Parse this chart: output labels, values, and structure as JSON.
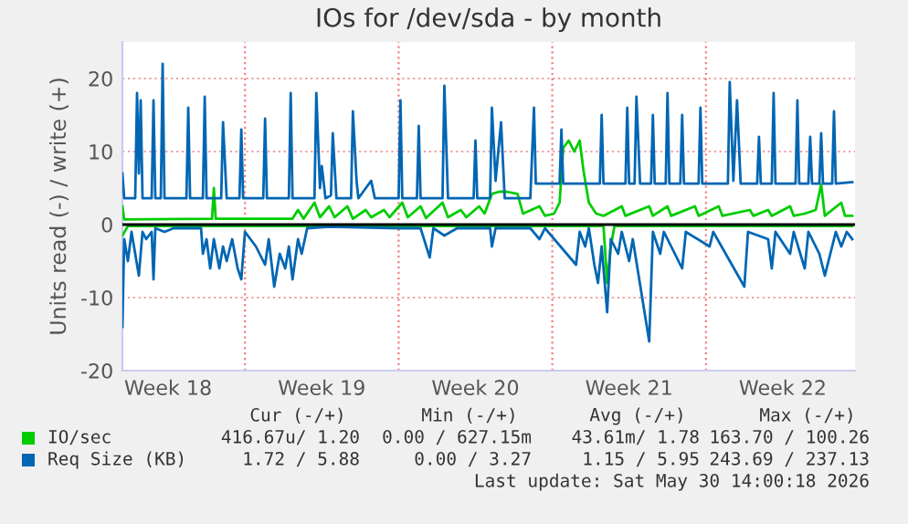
{
  "chart_data": {
    "type": "line",
    "title": "IOs for /dev/sda - by month",
    "ylabel": "Units read (-) / write (+)",
    "xlim": [
      "2026-04-28T10:00",
      "2026-05-31T19:00"
    ],
    "ylim": [
      -20,
      25
    ],
    "xticks": [
      {
        "value": "2026-04-30T12:00",
        "label": "Week 18"
      },
      {
        "value": "2026-05-07T12:00",
        "label": "Week 19"
      },
      {
        "value": "2026-05-14T12:00",
        "label": "Week 20"
      },
      {
        "value": "2026-05-21T12:00",
        "label": "Week 21"
      },
      {
        "value": "2026-05-28T12:00",
        "label": "Week 22"
      }
    ],
    "yticks": [
      -20,
      -10,
      0,
      10,
      20
    ],
    "grid": "y",
    "legend": "bottom",
    "ref_lines": [
      {
        "axis": "x",
        "value": "2026-05-04",
        "color": "#f08080",
        "line_style": "dotted"
      },
      {
        "axis": "x",
        "value": "2026-05-11",
        "color": "#f08080",
        "line_style": "dotted"
      },
      {
        "axis": "x",
        "value": "2026-05-18",
        "color": "#f08080",
        "line_style": "dotted"
      },
      {
        "axis": "x",
        "value": "2026-05-25",
        "color": "#f08080",
        "line_style": "dotted"
      },
      {
        "axis": "y",
        "value": 0,
        "color": "#000000",
        "line_style": "solid"
      }
    ],
    "series": [
      {
        "color": "#00cc00",
        "x": [
          "2026-04-28T10:00",
          "2026-04-28T16:00",
          "2026-05-20T08:00",
          "2026-05-20T10:00",
          "2026-05-20T12:00",
          "2026-05-20T16:00",
          "2026-05-20T20:00",
          "2026-05-31T16:00"
        ],
        "values": [
          -1.5,
          -0.2,
          -0.2,
          -4,
          -8,
          -3,
          -0.2,
          -0.2
        ]
      },
      {
        "name": "IO/sec",
        "color": "#00cc00",
        "x": [
          "2026-04-28T10:00",
          "2026-04-28T12:00",
          "2026-05-02T12:00",
          "2026-05-02T14:00",
          "2026-05-02T16:00",
          "2026-05-06T04:00",
          "2026-05-06T10:00",
          "2026-05-06T16:00",
          "2026-05-07T04:00",
          "2026-05-07T10:00",
          "2026-05-07T20:00",
          "2026-05-08T02:00",
          "2026-05-08T16:00",
          "2026-05-08T22:00",
          "2026-05-09T12:00",
          "2026-05-09T18:00",
          "2026-05-10T08:00",
          "2026-05-10T14:00",
          "2026-05-11T04:00",
          "2026-05-11T10:00",
          "2026-05-12T00:00",
          "2026-05-12T06:00",
          "2026-05-13T00:00",
          "2026-05-13T06:00",
          "2026-05-13T20:00",
          "2026-05-14T02:00",
          "2026-05-14T16:00",
          "2026-05-14T22:00",
          "2026-05-15T06:00",
          "2026-05-15T14:00",
          "2026-05-15T22:00",
          "2026-05-16T10:00",
          "2026-05-16T16:00",
          "2026-05-17T10:00",
          "2026-05-17T16:00",
          "2026-05-18T02:00",
          "2026-05-18T08:00",
          "2026-05-18T12:00",
          "2026-05-18T18:00",
          "2026-05-19T00:00",
          "2026-05-19T06:00",
          "2026-05-19T10:00",
          "2026-05-19T16:00",
          "2026-05-20T00:00",
          "2026-05-20T08:00",
          "2026-05-21T04:00",
          "2026-05-21T08:00",
          "2026-05-22T10:00",
          "2026-05-22T14:00",
          "2026-05-23T06:00",
          "2026-05-23T10:00",
          "2026-05-24T12:00",
          "2026-05-24T16:00",
          "2026-05-25T14:00",
          "2026-05-25T18:00",
          "2026-05-27T00:00",
          "2026-05-27T04:00",
          "2026-05-27T20:00",
          "2026-05-28T00:00",
          "2026-05-28T20:00",
          "2026-05-29T00:00",
          "2026-05-29T12:00",
          "2026-05-30T00:00",
          "2026-05-30T06:00",
          "2026-05-30T10:00",
          "2026-05-31T04:00",
          "2026-05-31T08:00",
          "2026-05-31T16:00"
        ],
        "values": [
          2.5,
          0.7,
          0.8,
          5,
          0.8,
          0.8,
          2,
          0.8,
          3,
          1,
          2.5,
          1,
          2.5,
          0.8,
          2,
          1,
          2,
          1,
          3,
          1,
          2.5,
          0.9,
          3,
          1,
          2,
          1,
          2.5,
          1.5,
          4.2,
          4.5,
          4.5,
          4.2,
          1.5,
          2.5,
          1.2,
          1.5,
          3,
          10.5,
          11.5,
          10,
          11.5,
          7.5,
          3,
          1.5,
          1.2,
          2.5,
          1.2,
          2.5,
          1.2,
          2.5,
          1.2,
          2.5,
          1.2,
          2.5,
          1.2,
          2,
          1.2,
          2,
          1.2,
          2.5,
          1.2,
          1.5,
          2,
          5.5,
          1.2,
          3,
          1.2,
          1.2
        ]
      },
      {
        "color": "#0066b3",
        "x": [
          "2026-04-28T10:00",
          "2026-04-28T12:00",
          "2026-04-28T16:00",
          "2026-04-28T20:00",
          "2026-04-29T00:00",
          "2026-04-29T04:00",
          "2026-04-29T08:00",
          "2026-04-29T12:00",
          "2026-04-29T18:00",
          "2026-04-29T20:00",
          "2026-04-29T22:00",
          "2026-04-30T08:00",
          "2026-04-30T18:00",
          "2026-05-02T00:00",
          "2026-05-02T02:00",
          "2026-05-02T06:00",
          "2026-05-02T10:00",
          "2026-05-02T14:00",
          "2026-05-02T20:00",
          "2026-05-03T00:00",
          "2026-05-03T04:00",
          "2026-05-03T10:00",
          "2026-05-03T16:00",
          "2026-05-03T20:00",
          "2026-05-04T00:00",
          "2026-05-04T12:00",
          "2026-05-04T22:00",
          "2026-05-05T02:00",
          "2026-05-05T08:00",
          "2026-05-05T14:00",
          "2026-05-05T20:00",
          "2026-05-06T00:00",
          "2026-05-06T04:00",
          "2026-05-06T10:00",
          "2026-05-06T14:00",
          "2026-05-06T20:00",
          "2026-05-07T20:00",
          "2026-05-11T00:00",
          "2026-05-12T00:00",
          "2026-05-12T10:00",
          "2026-05-12T14:00",
          "2026-05-13T02:00",
          "2026-05-13T16:00",
          "2026-05-15T04:00",
          "2026-05-15T06:00",
          "2026-05-15T10:00",
          "2026-05-17T00:00",
          "2026-05-17T10:00",
          "2026-05-17T16:00",
          "2026-05-19T02:00",
          "2026-05-19T06:00",
          "2026-05-19T12:00",
          "2026-05-19T16:00",
          "2026-05-19T22:00",
          "2026-05-20T02:00",
          "2026-05-20T06:00",
          "2026-05-20T12:00",
          "2026-05-20T16:00",
          "2026-05-21T00:00",
          "2026-05-21T04:00",
          "2026-05-21T12:00",
          "2026-05-21T16:00",
          "2026-05-22T10:00",
          "2026-05-22T14:00",
          "2026-05-22T22:00",
          "2026-05-23T02:00",
          "2026-05-23T22:00",
          "2026-05-24T02:00",
          "2026-05-25T04:00",
          "2026-05-25T08:00",
          "2026-05-26T18:00",
          "2026-05-26T22:00",
          "2026-05-27T20:00",
          "2026-05-28T00:00",
          "2026-05-28T04:00",
          "2026-05-28T20:00",
          "2026-05-29T00:00",
          "2026-05-29T12:00",
          "2026-05-29T16:00",
          "2026-05-30T04:00",
          "2026-05-30T10:00",
          "2026-05-30T22:00",
          "2026-05-31T04:00",
          "2026-05-31T10:00",
          "2026-05-31T16:00"
        ],
        "values": [
          -14,
          -2,
          -5,
          -1,
          -4,
          -7,
          -1,
          -2,
          -1,
          -7.5,
          -0.5,
          -1,
          -0.5,
          -0.5,
          -4,
          -2,
          -6,
          -2,
          -6,
          -3,
          -5,
          -2,
          -6,
          -7.5,
          -1,
          -3,
          -5.5,
          -2,
          -8.5,
          -4,
          -6,
          -3,
          -7.5,
          -2,
          -4,
          -0.5,
          -0.3,
          -0.5,
          -0.5,
          -4.5,
          -0.5,
          -1.5,
          -0.5,
          -0.5,
          -3,
          -0.5,
          -0.5,
          -2,
          -0.5,
          -5.5,
          -1,
          -3,
          -0.5,
          -5.5,
          -8,
          -3,
          -12,
          -2,
          -4,
          -1,
          -5,
          -2,
          -16,
          -1,
          -4,
          -1,
          -6,
          -1,
          -3,
          -1,
          -8.5,
          -1,
          -2,
          -6,
          -1,
          -4,
          -1,
          -6,
          -1,
          -4,
          -7,
          -1,
          -3,
          -1,
          -2
        ]
      },
      {
        "name": "Req Size (KB)",
        "color": "#0066b3",
        "x": [
          "2026-04-28T10:00",
          "2026-04-28T12:00",
          "2026-04-29T00:00",
          "2026-04-29T02:00",
          "2026-04-29T04:00",
          "2026-04-29T06:00",
          "2026-04-29T08:00",
          "2026-04-29T18:00",
          "2026-04-29T20:00",
          "2026-04-29T22:00",
          "2026-04-30T04:00",
          "2026-04-30T06:00",
          "2026-04-30T08:00",
          "2026-05-01T08:00",
          "2026-05-01T10:00",
          "2026-05-01T12:00",
          "2026-05-02T02:00",
          "2026-05-02T04:00",
          "2026-05-02T06:00",
          "2026-05-02T22:00",
          "2026-05-03T00:00",
          "2026-05-03T04:00",
          "2026-05-03T18:00",
          "2026-05-03T20:00",
          "2026-05-03T22:00",
          "2026-05-04T20:00",
          "2026-05-04T22:00",
          "2026-05-05T00:00",
          "2026-05-06T00:00",
          "2026-05-06T02:00",
          "2026-05-06T04:00",
          "2026-05-07T04:00",
          "2026-05-07T06:00",
          "2026-05-07T10:00",
          "2026-05-07T12:00",
          "2026-05-07T16:00",
          "2026-05-07T22:00",
          "2026-05-08T00:00",
          "2026-05-08T04:00",
          "2026-05-08T20:00",
          "2026-05-08T22:00",
          "2026-05-09T02:00",
          "2026-05-09T04:00",
          "2026-05-09T18:00",
          "2026-05-09T22:00",
          "2026-05-11T00:00",
          "2026-05-11T02:00",
          "2026-05-11T04:00",
          "2026-05-11T20:00",
          "2026-05-11T22:00",
          "2026-05-12T00:00",
          "2026-05-13T00:00",
          "2026-05-13T02:00",
          "2026-05-13T06:00",
          "2026-05-14T10:00",
          "2026-05-14T12:00",
          "2026-05-14T14:00",
          "2026-05-15T04:00",
          "2026-05-15T06:00",
          "2026-05-15T10:00",
          "2026-05-15T16:00",
          "2026-05-15T20:00",
          "2026-05-17T00:00",
          "2026-05-17T04:00",
          "2026-05-17T06:00",
          "2026-05-18T08:00",
          "2026-05-18T10:00",
          "2026-05-18T12:00",
          "2026-05-20T04:00",
          "2026-05-20T06:00",
          "2026-05-20T08:00",
          "2026-05-21T08:00",
          "2026-05-21T10:00",
          "2026-05-21T12:00",
          "2026-05-21T18:00",
          "2026-05-21T20:00",
          "2026-05-22T00:00",
          "2026-05-22T12:00",
          "2026-05-22T14:00",
          "2026-05-22T16:00",
          "2026-05-23T04:00",
          "2026-05-23T06:00",
          "2026-05-23T08:00",
          "2026-05-23T20:00",
          "2026-05-23T22:00",
          "2026-05-24T00:00",
          "2026-05-24T16:00",
          "2026-05-24T18:00",
          "2026-05-24T20:00",
          "2026-05-26T00:00",
          "2026-05-26T02:00",
          "2026-05-26T06:00",
          "2026-05-26T10:00",
          "2026-05-26T14:00",
          "2026-05-27T08:00",
          "2026-05-27T10:00",
          "2026-05-27T12:00",
          "2026-05-28T00:00",
          "2026-05-28T02:00",
          "2026-05-28T04:00",
          "2026-05-29T02:00",
          "2026-05-29T04:00",
          "2026-05-29T06:00",
          "2026-05-29T16:00",
          "2026-05-29T18:00",
          "2026-05-29T20:00",
          "2026-05-30T04:00",
          "2026-05-30T06:00",
          "2026-05-30T08:00",
          "2026-05-30T18:00",
          "2026-05-30T20:00",
          "2026-05-30T22:00",
          "2026-05-31T16:00"
        ],
        "values": [
          7,
          3.6,
          3.6,
          18,
          7,
          17,
          3.6,
          3.6,
          17,
          3.6,
          3.6,
          22,
          3.6,
          3.6,
          16,
          3.6,
          3.6,
          17.5,
          3.6,
          3.6,
          14,
          3.6,
          3.6,
          13,
          3.6,
          3.6,
          14.5,
          3.6,
          3.6,
          18,
          3.6,
          3.6,
          18,
          5,
          8,
          3.6,
          4,
          12.5,
          3.6,
          3.6,
          15.5,
          6,
          3.6,
          6,
          3.6,
          3.6,
          17,
          3.6,
          3.6,
          13.5,
          3.6,
          3.6,
          19,
          3.6,
          3.6,
          11.5,
          3.6,
          3.6,
          16,
          6,
          14,
          3.6,
          3.6,
          16,
          5.6,
          5.6,
          13,
          5.6,
          5.6,
          15,
          5.6,
          5.6,
          16,
          5.6,
          5.6,
          17.5,
          5.6,
          5.6,
          15,
          5.6,
          5.6,
          18,
          5.6,
          5.6,
          15,
          5.6,
          5.6,
          16,
          5.6,
          5.6,
          19.5,
          6,
          17,
          5.6,
          5.6,
          12,
          5.6,
          5.6,
          18,
          5.6,
          5.6,
          17,
          5.6,
          5.6,
          12,
          5.6,
          5.6,
          12.5,
          5.6,
          5.6,
          15.5,
          5.6,
          5.8
        ]
      }
    ],
    "annotations": [
      "Cur (-/+)",
      "Min (-/+)",
      "Avg (-/+)",
      "Max (-/+)",
      "416.67u/ 1.20",
      "0.00 / 627.15m",
      "43.61m/ 1.78",
      "163.70 / 100.26",
      "1.72 / 5.88",
      "0.00 / 3.27",
      "1.15 / 5.95",
      "243.69 / 237.13",
      "Last update: Sat May 30 14:00:18 2026"
    ]
  }
}
